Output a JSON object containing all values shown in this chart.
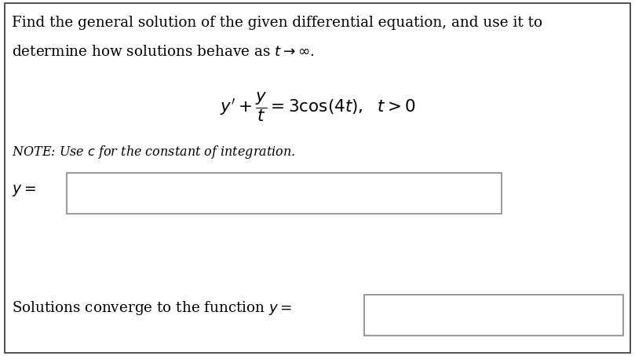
{
  "bg_color": "#ffffff",
  "border_color": "#333333",
  "text_color": "#000000",
  "line1": "Find the general solution of the given differential equation, and use it to",
  "line2": "determine how solutions behave as $t \\rightarrow \\infty$.",
  "equation": "$y' + \\dfrac{y}{t} = 3\\cos(4t),\\ \\ t > 0$",
  "note": "NOTE: Use $c$ for the constant of integration.",
  "label_y": "$y =$",
  "label_solutions": "Solutions converge to the function $y =$",
  "figsize": [
    8.09,
    4.53
  ],
  "dpi": 100
}
